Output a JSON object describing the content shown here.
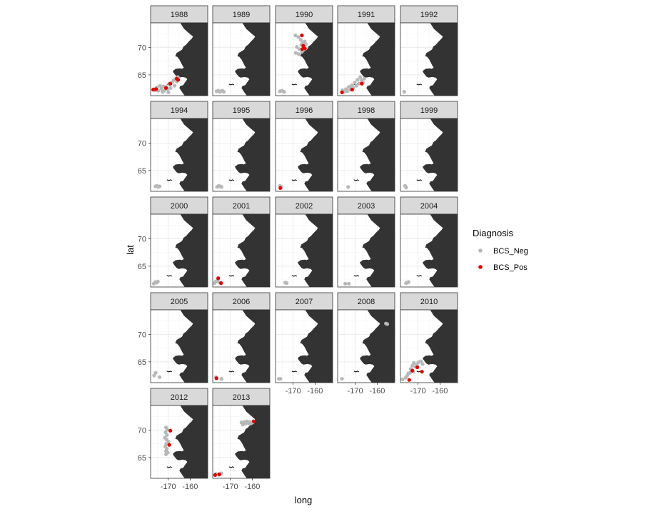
{
  "chart_data": {
    "type": "scatter",
    "facet_by": "year",
    "xlabel": "long",
    "ylabel": "lat",
    "xlim": [
      -178,
      -152
    ],
    "ylim": [
      61.2,
      74.5
    ],
    "x_ticks": [
      -170,
      -160
    ],
    "x_tick_labels": [
      "-170",
      "-160"
    ],
    "y_ticks": [
      65,
      70
    ],
    "y_tick_labels": [
      "65",
      "70"
    ],
    "grid": true,
    "theme": "bw",
    "legend": {
      "title": "Diagnosis",
      "position": "right",
      "entries": [
        {
          "label": "BCS_Neg",
          "color": "#b8b8b8"
        },
        {
          "label": "BCS_Pos",
          "color": "#e00000"
        }
      ]
    },
    "land_color": "#333333",
    "panels": [
      {
        "year": "1988",
        "neg": [
          [
            -176.5,
            62.4
          ],
          [
            -175.8,
            62.2
          ],
          [
            -175.2,
            62.7
          ],
          [
            -174.5,
            62.1
          ],
          [
            -173.8,
            63.0
          ],
          [
            -173.1,
            62.5
          ],
          [
            -172.2,
            62.9
          ],
          [
            -171.8,
            62.1
          ],
          [
            -170.9,
            62.8
          ],
          [
            -170.2,
            62.4
          ],
          [
            -169.5,
            63.3
          ],
          [
            -168.9,
            62.6
          ],
          [
            -168.2,
            63.6
          ],
          [
            -167.6,
            64.0
          ],
          [
            -167.1,
            63.0
          ],
          [
            -166.5,
            64.3
          ],
          [
            -166.0,
            63.8
          ],
          [
            -165.6,
            64.6
          ],
          [
            -172.6,
            61.9
          ],
          [
            -169.9,
            61.8
          ]
        ],
        "pos": [
          [
            -176.8,
            62.3
          ],
          [
            -175.5,
            62.4
          ],
          [
            -171.0,
            62.6
          ],
          [
            -169.1,
            63.4
          ],
          [
            -166.1,
            64.3
          ],
          [
            -165.5,
            64.1
          ]
        ]
      },
      {
        "year": "1989",
        "neg": [
          [
            -176.2,
            62.0
          ],
          [
            -175.5,
            62.1
          ],
          [
            -174.8,
            61.9
          ],
          [
            -174.2,
            62.0
          ],
          [
            -173.6,
            62.1
          ],
          [
            -173.0,
            61.9
          ]
        ],
        "pos": []
      },
      {
        "year": "1990",
        "neg": [
          [
            -176.0,
            62.0
          ],
          [
            -175.0,
            62.1
          ],
          [
            -174.1,
            61.9
          ],
          [
            -168.9,
            72.2
          ],
          [
            -167.6,
            71.9
          ],
          [
            -166.5,
            71.4
          ],
          [
            -165.5,
            70.9
          ],
          [
            -164.7,
            71.1
          ],
          [
            -168.3,
            70.1
          ],
          [
            -167.2,
            69.7
          ],
          [
            -166.3,
            70.5
          ],
          [
            -168.8,
            69.0
          ],
          [
            -167.5,
            68.8
          ],
          [
            -166.0,
            69.2
          ],
          [
            -165.0,
            70.0
          ],
          [
            -164.2,
            70.6
          ]
        ],
        "pos": [
          [
            -166.0,
            72.2
          ],
          [
            -165.4,
            70.3
          ],
          [
            -165.8,
            69.7
          ],
          [
            -164.6,
            69.8
          ]
        ]
      },
      {
        "year": "1991",
        "neg": [
          [
            -175.8,
            62.2
          ],
          [
            -175.0,
            61.9
          ],
          [
            -174.2,
            62.4
          ],
          [
            -173.6,
            62.0
          ],
          [
            -172.9,
            62.8
          ],
          [
            -172.2,
            62.3
          ],
          [
            -171.5,
            63.1
          ],
          [
            -170.9,
            62.6
          ],
          [
            -170.2,
            63.6
          ],
          [
            -169.5,
            63.0
          ],
          [
            -168.9,
            64.1
          ],
          [
            -168.3,
            63.4
          ],
          [
            -167.7,
            64.6
          ],
          [
            -167.1,
            64.0
          ],
          [
            -166.5,
            63.6
          ],
          [
            -165.9,
            64.3
          ],
          [
            -172.4,
            62.7
          ],
          [
            -171.2,
            62.4
          ]
        ],
        "pos": [
          [
            -176.0,
            61.8
          ],
          [
            -171.4,
            62.3
          ],
          [
            -167.0,
            63.4
          ]
        ]
      },
      {
        "year": "1992",
        "neg": [
          [
            -176.3,
            61.9
          ]
        ],
        "pos": []
      },
      {
        "year": "1994",
        "neg": [
          [
            -175.8,
            62.1
          ],
          [
            -175.2,
            62.2
          ],
          [
            -174.5,
            62.0
          ],
          [
            -173.9,
            62.1
          ]
        ],
        "pos": []
      },
      {
        "year": "1995",
        "neg": [
          [
            -176.0,
            62.0
          ],
          [
            -175.3,
            62.2
          ],
          [
            -174.6,
            62.1
          ],
          [
            -174.0,
            62.0
          ]
        ],
        "pos": []
      },
      {
        "year": "1996",
        "neg": [
          [
            -176.0,
            62.2
          ],
          [
            -175.3,
            62.0
          ]
        ],
        "pos": [
          [
            -175.8,
            61.8
          ]
        ]
      },
      {
        "year": "1998",
        "neg": [
          [
            -173.2,
            62.0
          ]
        ],
        "pos": []
      },
      {
        "year": "1999",
        "neg": [
          [
            -175.9,
            62.2
          ],
          [
            -175.4,
            61.9
          ]
        ],
        "pos": []
      },
      {
        "year": "2000",
        "neg": [
          [
            -176.6,
            61.8
          ],
          [
            -175.9,
            62.1
          ],
          [
            -175.3,
            62.0
          ],
          [
            -174.7,
            62.2
          ]
        ],
        "pos": []
      },
      {
        "year": "2001",
        "neg": [
          [
            -177.2,
            61.9
          ],
          [
            -176.6,
            62.2
          ],
          [
            -175.9,
            62.4
          ],
          [
            -175.3,
            62.1
          ],
          [
            -174.6,
            62.0
          ]
        ],
        "pos": [
          [
            -175.5,
            62.8
          ],
          [
            -174.2,
            61.9
          ]
        ]
      },
      {
        "year": "2002",
        "neg": [
          [
            -173.6,
            62.0
          ],
          [
            -172.9,
            61.9
          ]
        ],
        "pos": []
      },
      {
        "year": "2003",
        "neg": [
          [
            -174.5,
            61.8
          ],
          [
            -172.9,
            61.8
          ]
        ],
        "pos": []
      },
      {
        "year": "2004",
        "neg": [
          [
            -175.5,
            61.9
          ],
          [
            -174.9,
            62.0
          ],
          [
            -174.3,
            62.1
          ]
        ],
        "pos": []
      },
      {
        "year": "2005",
        "neg": [
          [
            -176.4,
            62.5
          ],
          [
            -175.7,
            63.0
          ],
          [
            -173.9,
            62.2
          ]
        ],
        "pos": []
      },
      {
        "year": "2006",
        "neg": [
          [
            -176.5,
            62.2
          ],
          [
            -174.0,
            61.9
          ]
        ],
        "pos": [
          [
            -176.3,
            62.0
          ]
        ]
      },
      {
        "year": "2007",
        "neg": [
          [
            -176.5,
            61.9
          ],
          [
            -175.8,
            61.9
          ]
        ],
        "pos": []
      },
      {
        "year": "2008",
        "neg": [
          [
            -176.0,
            61.9
          ],
          [
            -156.0,
            72.0
          ],
          [
            -155.4,
            71.9
          ]
        ],
        "pos": []
      },
      {
        "year": "2010",
        "neg": [
          [
            -177.0,
            61.8
          ],
          [
            -175.6,
            62.1
          ],
          [
            -174.9,
            62.5
          ],
          [
            -174.4,
            62.9
          ],
          [
            -173.7,
            63.0
          ],
          [
            -173.3,
            63.7
          ],
          [
            -172.6,
            64.3
          ],
          [
            -171.9,
            64.8
          ],
          [
            -171.2,
            64.1
          ],
          [
            -170.6,
            64.4
          ],
          [
            -169.9,
            64.9
          ],
          [
            -168.7,
            65.1
          ],
          [
            -167.9,
            64.6
          ],
          [
            -172.1,
            63.2
          ]
        ],
        "pos": [
          [
            -174.0,
            61.7
          ],
          [
            -172.6,
            63.4
          ],
          [
            -170.3,
            64.0
          ],
          [
            -168.2,
            63.2
          ]
        ]
      },
      {
        "year": "2012",
        "neg": [
          [
            -171.0,
            70.5
          ],
          [
            -170.4,
            70.1
          ],
          [
            -171.2,
            69.6
          ],
          [
            -170.6,
            69.1
          ],
          [
            -171.5,
            68.6
          ],
          [
            -170.8,
            68.3
          ],
          [
            -169.9,
            67.9
          ],
          [
            -170.9,
            67.5
          ],
          [
            -171.3,
            67.0
          ],
          [
            -170.6,
            66.6
          ],
          [
            -171.0,
            66.2
          ],
          [
            -170.2,
            65.9
          ],
          [
            -171.0,
            65.6
          ]
        ],
        "pos": [
          [
            -169.0,
            69.9
          ],
          [
            -169.5,
            67.3
          ]
        ]
      },
      {
        "year": "2013",
        "neg": [
          [
            -164.9,
            71.4
          ],
          [
            -164.3,
            71.0
          ],
          [
            -163.6,
            71.5
          ],
          [
            -163.0,
            71.2
          ],
          [
            -162.4,
            71.6
          ],
          [
            -161.8,
            71.3
          ],
          [
            -161.2,
            71.5
          ],
          [
            -160.6,
            71.2
          ],
          [
            -159.8,
            71.4
          ],
          [
            -176.6,
            62.0
          ],
          [
            -175.1,
            62.0
          ],
          [
            -174.1,
            62.1
          ]
        ],
        "pos": [
          [
            -159.3,
            71.6
          ],
          [
            -176.9,
            61.8
          ],
          [
            -175.0,
            61.9
          ]
        ]
      }
    ]
  }
}
